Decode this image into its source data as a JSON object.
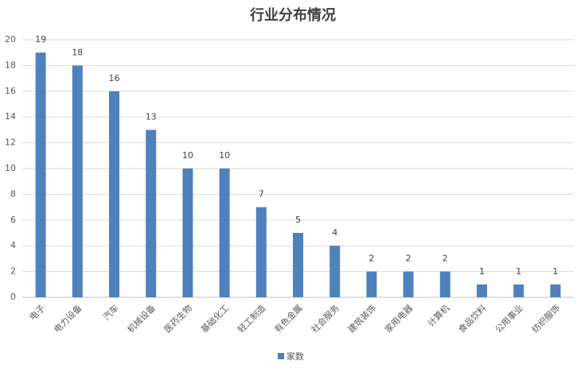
{
  "chart_data": {
    "type": "bar",
    "title": "行业分布情况",
    "categories": [
      "电子",
      "电力设备",
      "汽车",
      "机械设备",
      "医药生物",
      "基础化工",
      "轻工制造",
      "有色金属",
      "社会服务",
      "建筑装饰",
      "家用电器",
      "计算机",
      "食品饮料",
      "公用事业",
      "纺织服饰"
    ],
    "series": [
      {
        "name": "家数",
        "color": "#4f81bd",
        "values": [
          19,
          18,
          16,
          13,
          10,
          10,
          7,
          5,
          4,
          2,
          2,
          2,
          1,
          1,
          1
        ]
      }
    ],
    "ylim": [
      0,
      20
    ],
    "yticks": [
      0,
      2,
      4,
      6,
      8,
      10,
      12,
      14,
      16,
      18,
      20
    ],
    "grid": true,
    "legend": "bottom"
  }
}
